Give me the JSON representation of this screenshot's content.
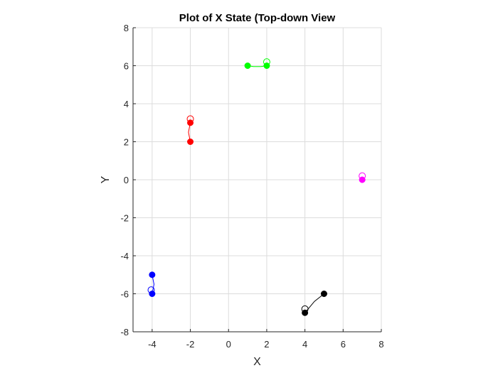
{
  "chart_data": {
    "type": "scatter",
    "title": "Plot of X State (Top-down View",
    "xlabel": "X",
    "ylabel": "Y",
    "xlim": [
      -5,
      8
    ],
    "ylim": [
      -8,
      8
    ],
    "xticks": [
      -4,
      -2,
      0,
      2,
      4,
      6,
      8
    ],
    "yticks": [
      -8,
      -6,
      -4,
      -2,
      0,
      2,
      4,
      6,
      8
    ],
    "grid": true,
    "series": [
      {
        "color": "#00ff00",
        "filled_points": [
          [
            1,
            6
          ],
          [
            2,
            6
          ]
        ],
        "open_points": [
          [
            2,
            6.2
          ]
        ],
        "trajectory": [
          [
            1,
            6
          ],
          [
            1.3,
            5.95
          ],
          [
            1.7,
            5.95
          ],
          [
            2,
            6
          ]
        ]
      },
      {
        "color": "#ff0000",
        "filled_points": [
          [
            -2,
            2
          ],
          [
            -2,
            3
          ]
        ],
        "open_points": [
          [
            -2,
            3.2
          ]
        ],
        "trajectory": [
          [
            -2,
            2
          ],
          [
            -2.1,
            2.5
          ],
          [
            -2,
            3
          ]
        ]
      },
      {
        "color": "#ff00ff",
        "filled_points": [
          [
            7,
            0
          ]
        ],
        "open_points": [
          [
            7,
            0.2
          ]
        ],
        "trajectory": []
      },
      {
        "color": "#0000ff",
        "filled_points": [
          [
            -4,
            -5
          ],
          [
            -4,
            -6
          ]
        ],
        "open_points": [
          [
            -4.05,
            -5.8
          ]
        ],
        "trajectory": [
          [
            -4,
            -5
          ],
          [
            -3.9,
            -5.5
          ],
          [
            -4,
            -6
          ]
        ]
      },
      {
        "color": "#000000",
        "filled_points": [
          [
            5,
            -6
          ],
          [
            4,
            -7
          ]
        ],
        "open_points": [
          [
            4,
            -6.8
          ]
        ],
        "trajectory": [
          [
            5,
            -6
          ],
          [
            4.5,
            -6.4
          ],
          [
            4,
            -7
          ]
        ]
      }
    ]
  }
}
